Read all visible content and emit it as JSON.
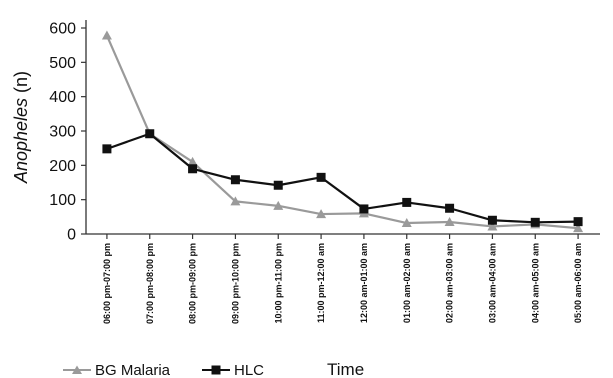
{
  "chart_data": {
    "type": "line",
    "title": "",
    "ylabel_italic": "Anopheles",
    "ylabel_suffix": " (n)",
    "xlabel": "Time",
    "ylim": [
      0,
      600
    ],
    "yticks": [
      "0",
      "100",
      "200",
      "300",
      "400",
      "500",
      "600"
    ],
    "categories": [
      "06:00 pm-07:00 pm",
      "07:00 pm-08:00 pm",
      "08:00 pm-09:00 pm",
      "09:00 pm-10:00 pm",
      "10:00 pm-11:00 pm",
      "11:00 pm-12:00 am",
      "12:00 am-01:00 am",
      "01:00 am-02:00 am",
      "02:00 am-03:00 am",
      "03:00 am-04:00 am",
      "04:00 am-05:00 am",
      "05:00 am-06:00 am"
    ],
    "series": [
      {
        "name": "BG Malaria",
        "color": "#9a9a9a",
        "marker": "triangle",
        "values": [
          578,
          292,
          210,
          95,
          82,
          58,
          60,
          32,
          35,
          22,
          28,
          17
        ]
      },
      {
        "name": "HLC",
        "color": "#111111",
        "marker": "square",
        "values": [
          248,
          292,
          190,
          158,
          142,
          165,
          73,
          92,
          75,
          40,
          34,
          36
        ]
      }
    ],
    "legend_position": "bottom-left",
    "grid": false
  }
}
